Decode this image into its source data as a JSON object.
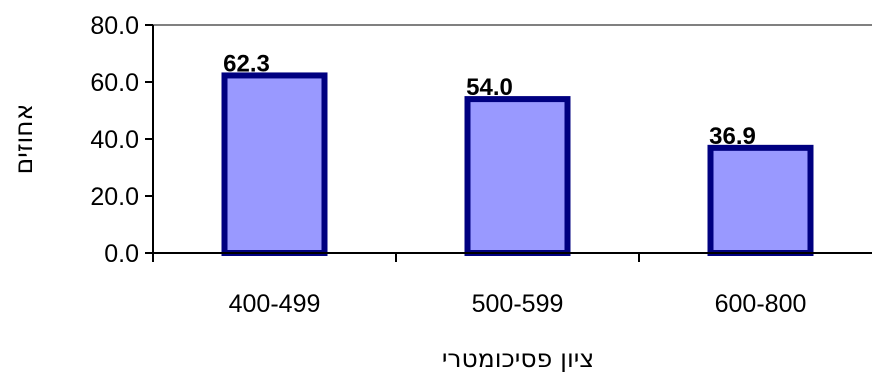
{
  "chart_data": {
    "type": "bar",
    "categories": [
      "400-499",
      "500-599",
      "600-800"
    ],
    "values": [
      62.3,
      54.0,
      36.9
    ],
    "data_labels": [
      "62.3",
      "54.0",
      "36.9"
    ],
    "y_ticks": [
      "0.0",
      "20.0",
      "40.0",
      "60.0",
      "80.0"
    ],
    "y_tick_values": [
      0,
      20,
      40,
      60,
      80
    ],
    "ylim": [
      0,
      80
    ],
    "xlabel": "ציון פסיכומטרי",
    "ylabel": "אחוזים",
    "grid": false,
    "legend": "none",
    "colors": {
      "bar_fill": "#9999ff",
      "bar_border": "#000080",
      "axis": "#000000",
      "frame": "#808080"
    }
  }
}
